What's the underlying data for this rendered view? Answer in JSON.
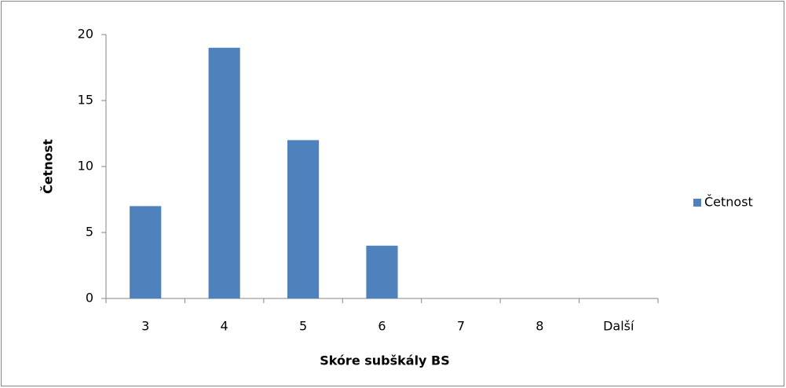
{
  "chart_data": {
    "type": "bar",
    "x_label": "Skóre subškály BS",
    "y_label": "Četnost",
    "categories": [
      "3",
      "4",
      "5",
      "6",
      "7",
      "8",
      "Další"
    ],
    "series": [
      {
        "name": "Četnost",
        "color": "#4f81bd",
        "values": [
          7,
          19,
          12,
          4,
          0,
          0,
          0
        ]
      }
    ],
    "ylim": [
      0,
      20
    ],
    "yticks": [
      0,
      5,
      10,
      15,
      20
    ],
    "grid": false,
    "legend": "right"
  }
}
